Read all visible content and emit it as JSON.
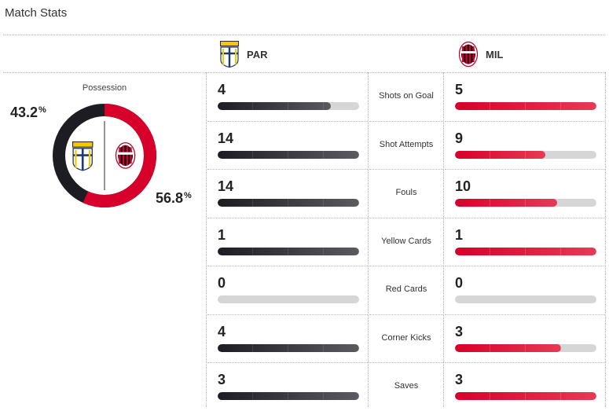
{
  "title": "Match Stats",
  "colors": {
    "home": "#1c1c22",
    "away": "#d7002a",
    "track": "#d6d6d6"
  },
  "home": {
    "abbr": "PAR",
    "crest_icon": "parma-crest-icon"
  },
  "away": {
    "abbr": "MIL",
    "crest_icon": "milan-crest-icon"
  },
  "possession": {
    "label": "Possession",
    "home_value": "43.2",
    "away_value": "56.8",
    "unit": "%",
    "home_fraction": 0.432,
    "away_fraction": 0.568
  },
  "stats": [
    {
      "name": "Shots on Goal",
      "home": "4",
      "away": "5",
      "home_fill": 0.8,
      "away_fill": 1.0
    },
    {
      "name": "Shot Attempts",
      "home": "14",
      "away": "9",
      "home_fill": 1.0,
      "away_fill": 0.64
    },
    {
      "name": "Fouls",
      "home": "14",
      "away": "10",
      "home_fill": 1.0,
      "away_fill": 0.72
    },
    {
      "name": "Yellow Cards",
      "home": "1",
      "away": "1",
      "home_fill": 1.0,
      "away_fill": 1.0
    },
    {
      "name": "Red Cards",
      "home": "0",
      "away": "0",
      "home_fill": 0.0,
      "away_fill": 0.0
    },
    {
      "name": "Corner Kicks",
      "home": "4",
      "away": "3",
      "home_fill": 1.0,
      "away_fill": 0.75
    },
    {
      "name": "Saves",
      "home": "3",
      "away": "3",
      "home_fill": 1.0,
      "away_fill": 1.0
    }
  ]
}
